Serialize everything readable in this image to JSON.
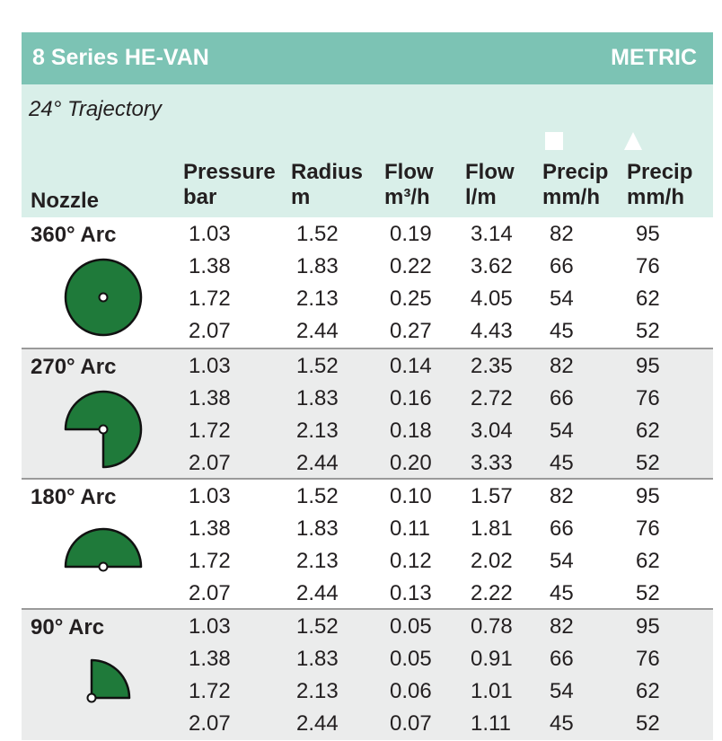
{
  "title": "8 Series HE-VAN",
  "unit_system": "METRIC",
  "trajectory": "24° Trajectory",
  "headers": {
    "nozzle": "Nozzle",
    "pressure": [
      "Pressure",
      "bar"
    ],
    "radius": [
      "Radius",
      "m"
    ],
    "flow_m3h": [
      "Flow",
      "m³/h"
    ],
    "flow_lm": [
      "Flow",
      "l/m"
    ],
    "precip_square": [
      "Precip",
      "mm/h"
    ],
    "precip_triangle": [
      "Precip",
      "mm/h"
    ]
  },
  "colors": {
    "header_bar": "#7cc3b4",
    "header_band": "#d9efe9",
    "shade": "#ebecec",
    "nozzle_green": "#1f7a3a"
  },
  "icons": {
    "precip_square": "square-icon",
    "precip_triangle": "triangle-icon"
  },
  "groups": [
    {
      "arc": "360° Arc",
      "rows": [
        [
          "1.03",
          "1.52",
          "0.19",
          "3.14",
          "82",
          "95"
        ],
        [
          "1.38",
          "1.83",
          "0.22",
          "3.62",
          "66",
          "76"
        ],
        [
          "1.72",
          "2.13",
          "0.25",
          "4.05",
          "54",
          "62"
        ],
        [
          "2.07",
          "2.44",
          "0.27",
          "4.43",
          "45",
          "52"
        ]
      ]
    },
    {
      "arc": "270° Arc",
      "rows": [
        [
          "1.03",
          "1.52",
          "0.14",
          "2.35",
          "82",
          "95"
        ],
        [
          "1.38",
          "1.83",
          "0.16",
          "2.72",
          "66",
          "76"
        ],
        [
          "1.72",
          "2.13",
          "0.18",
          "3.04",
          "54",
          "62"
        ],
        [
          "2.07",
          "2.44",
          "0.20",
          "3.33",
          "45",
          "52"
        ]
      ]
    },
    {
      "arc": "180° Arc",
      "rows": [
        [
          "1.03",
          "1.52",
          "0.10",
          "1.57",
          "82",
          "95"
        ],
        [
          "1.38",
          "1.83",
          "0.11",
          "1.81",
          "66",
          "76"
        ],
        [
          "1.72",
          "2.13",
          "0.12",
          "2.02",
          "54",
          "62"
        ],
        [
          "2.07",
          "2.44",
          "0.13",
          "2.22",
          "45",
          "52"
        ]
      ]
    },
    {
      "arc": "90° Arc",
      "rows": [
        [
          "1.03",
          "1.52",
          "0.05",
          "0.78",
          "82",
          "95"
        ],
        [
          "1.38",
          "1.83",
          "0.05",
          "0.91",
          "66",
          "76"
        ],
        [
          "1.72",
          "2.13",
          "0.06",
          "1.01",
          "54",
          "62"
        ],
        [
          "2.07",
          "2.44",
          "0.07",
          "1.11",
          "45",
          "52"
        ]
      ]
    }
  ]
}
